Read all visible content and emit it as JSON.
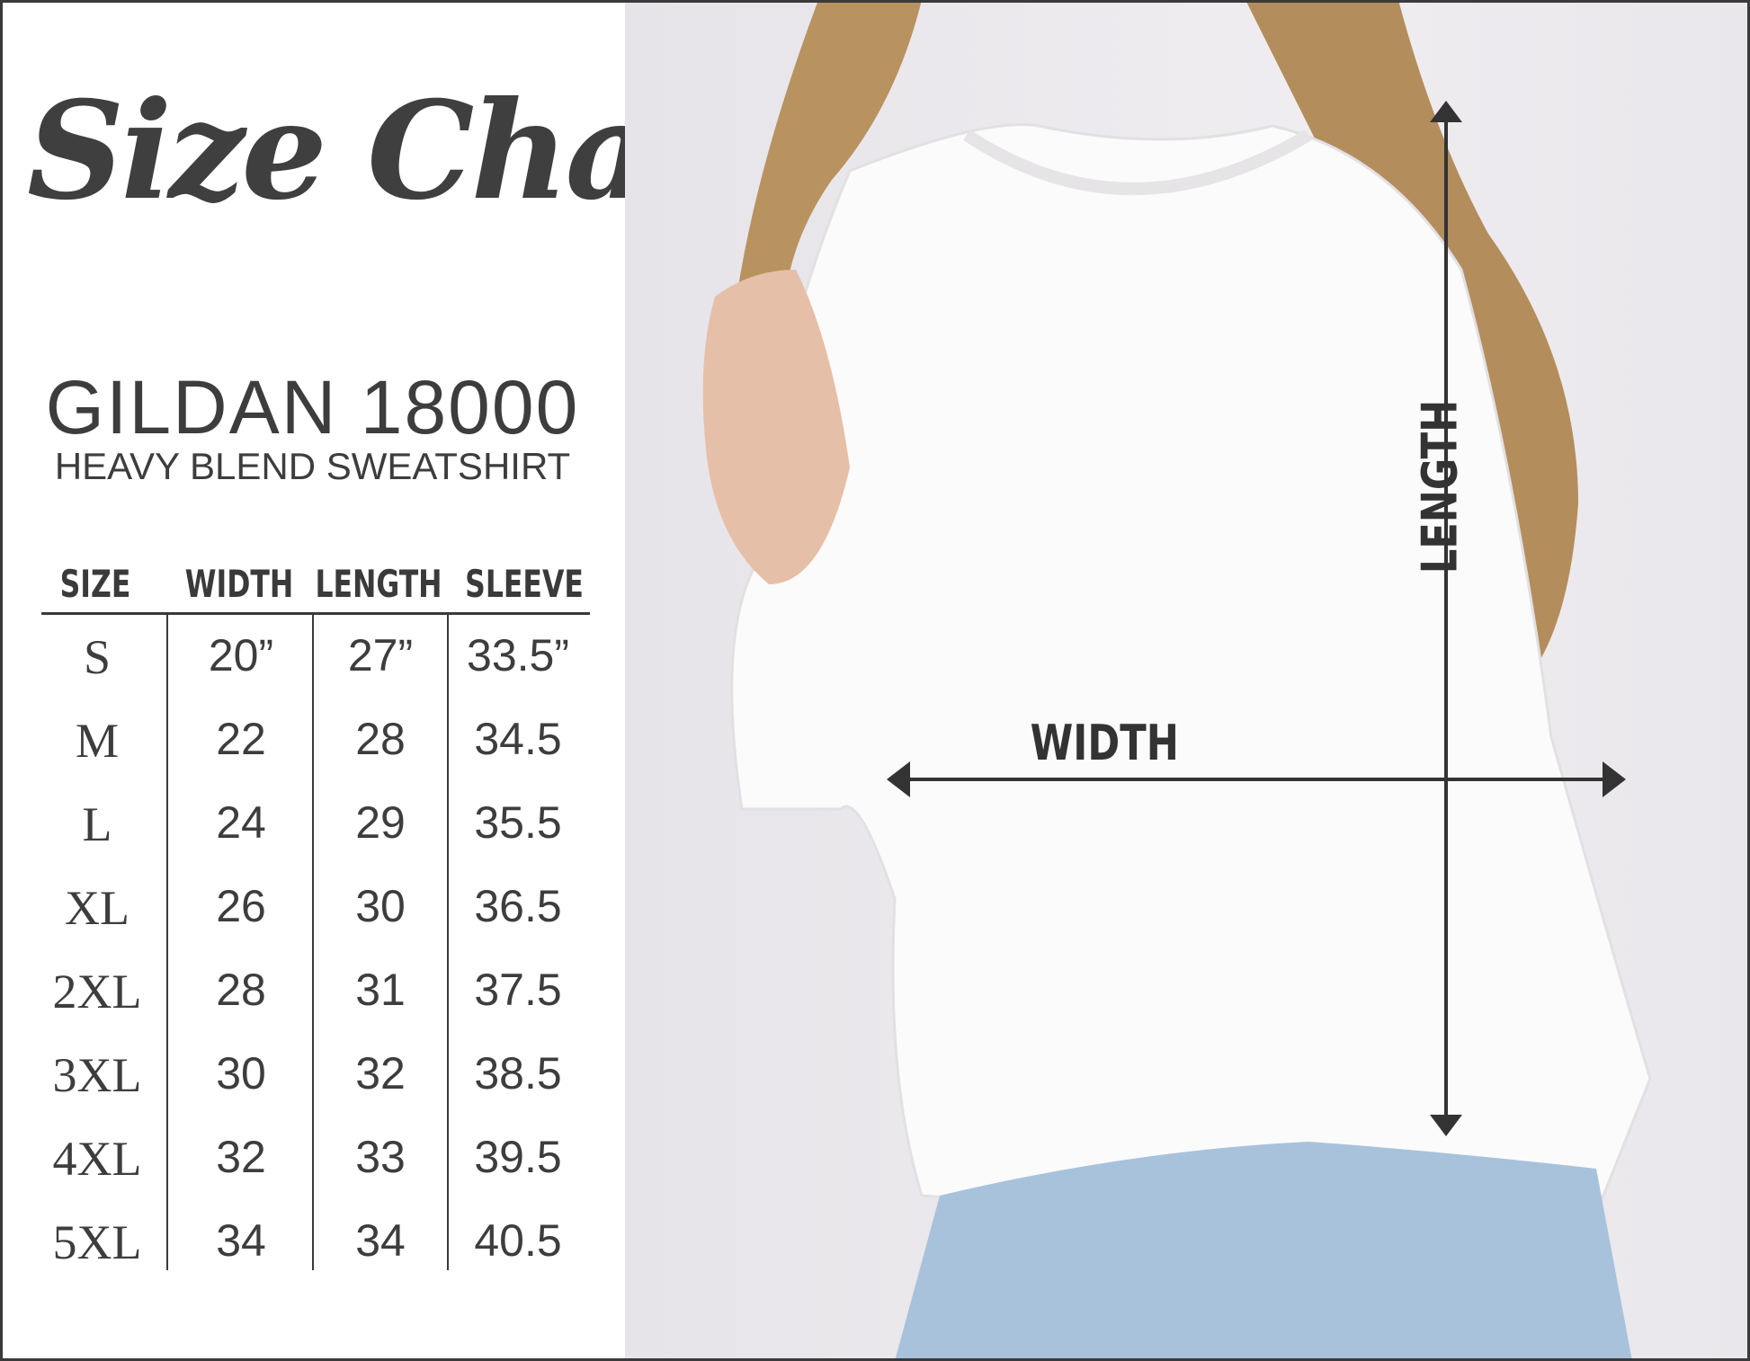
{
  "title": "Size Chart",
  "brand": "GILDAN 18000",
  "subtitle": "HEAVY BLEND SWEATSHIRT",
  "table": {
    "headers": [
      "SIZE",
      "WIDTH",
      "LENGTH",
      "SLEEVE"
    ],
    "rows": [
      [
        "S",
        "20”",
        "27”",
        "33.5”"
      ],
      [
        "M",
        "22",
        "28",
        "34.5"
      ],
      [
        "L",
        "24",
        "29",
        "35.5"
      ],
      [
        "XL",
        "26",
        "30",
        "36.5"
      ],
      [
        "2XL",
        "28",
        "31",
        "37.5"
      ],
      [
        "3XL",
        "30",
        "32",
        "38.5"
      ],
      [
        "4XL",
        "32",
        "33",
        "39.5"
      ],
      [
        "5XL",
        "34",
        "34",
        "40.5"
      ]
    ]
  },
  "labels": {
    "width": "WIDTH",
    "length": "LENGTH"
  },
  "colors": {
    "text": "#3d3d3d",
    "arrow": "#333333",
    "sweatshirt": "#fbfbfb",
    "jeans": "#a9c2dc",
    "hair": "#b08a5a"
  }
}
